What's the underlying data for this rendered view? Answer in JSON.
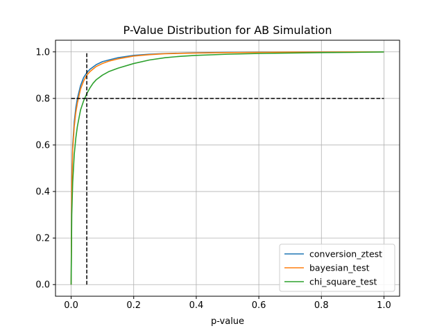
{
  "chart_data": {
    "type": "line",
    "title": "P-Value Distribution for AB Simulation",
    "xlabel": "p-value",
    "ylabel": "",
    "xlim": [
      -0.05,
      1.05
    ],
    "ylim": [
      -0.05,
      1.05
    ],
    "xticks": [
      0.0,
      0.2,
      0.4,
      0.6,
      0.8,
      1.0
    ],
    "xtick_labels": [
      "0.0",
      "0.2",
      "0.4",
      "0.6",
      "0.8",
      "1.0"
    ],
    "yticks": [
      0.0,
      0.2,
      0.4,
      0.6,
      0.8,
      1.0
    ],
    "ytick_labels": [
      "0.0",
      "0.2",
      "0.4",
      "0.6",
      "0.8",
      "1.0"
    ],
    "grid": true,
    "legend_position": "lower-right",
    "series": [
      {
        "name": "conversion_ztest",
        "color": "#1f77b4",
        "x": [
          0,
          0.002,
          0.005,
          0.01,
          0.015,
          0.02,
          0.03,
          0.04,
          0.05,
          0.06,
          0.08,
          0.1,
          0.12,
          0.15,
          0.2,
          0.25,
          0.3,
          0.4,
          0.5,
          0.6,
          0.7,
          0.8,
          0.9,
          1.0
        ],
        "values": [
          0.0,
          0.45,
          0.6,
          0.7,
          0.76,
          0.8,
          0.855,
          0.89,
          0.91,
          0.925,
          0.945,
          0.958,
          0.965,
          0.975,
          0.985,
          0.99,
          0.993,
          0.996,
          0.998,
          0.999,
          0.999,
          1.0,
          1.0,
          1.0
        ]
      },
      {
        "name": "bayesian_test",
        "color": "#ff7f0e",
        "x": [
          0,
          0.002,
          0.005,
          0.01,
          0.015,
          0.02,
          0.03,
          0.04,
          0.05,
          0.06,
          0.08,
          0.1,
          0.12,
          0.15,
          0.2,
          0.25,
          0.3,
          0.4,
          0.5,
          0.6,
          0.7,
          0.8,
          0.9,
          1.0
        ],
        "values": [
          0.0,
          0.43,
          0.58,
          0.68,
          0.74,
          0.78,
          0.84,
          0.875,
          0.9,
          0.915,
          0.937,
          0.95,
          0.96,
          0.97,
          0.982,
          0.988,
          0.992,
          0.995,
          0.997,
          0.998,
          0.999,
          0.999,
          1.0,
          1.0
        ]
      },
      {
        "name": "chi_square_test",
        "color": "#2ca02c",
        "x": [
          0,
          0.002,
          0.005,
          0.01,
          0.015,
          0.02,
          0.03,
          0.04,
          0.05,
          0.06,
          0.07,
          0.08,
          0.1,
          0.12,
          0.15,
          0.2,
          0.25,
          0.3,
          0.35,
          0.4,
          0.5,
          0.6,
          0.7,
          0.8,
          0.9,
          1.0
        ],
        "values": [
          0.0,
          0.3,
          0.44,
          0.56,
          0.63,
          0.68,
          0.75,
          0.79,
          0.82,
          0.845,
          0.865,
          0.88,
          0.9,
          0.915,
          0.93,
          0.95,
          0.965,
          0.975,
          0.981,
          0.985,
          0.99,
          0.993,
          0.995,
          0.997,
          0.998,
          1.0
        ]
      }
    ],
    "reference_lines": [
      {
        "name": "alpha-threshold",
        "kind": "vertical",
        "x": 0.05,
        "y_range": [
          0.0,
          1.0
        ],
        "color": "#000000",
        "style": "dashed"
      },
      {
        "name": "power-threshold",
        "kind": "horizontal",
        "y": 0.8,
        "x_range": [
          0.0,
          1.0
        ],
        "color": "#000000",
        "style": "dashed"
      }
    ]
  }
}
